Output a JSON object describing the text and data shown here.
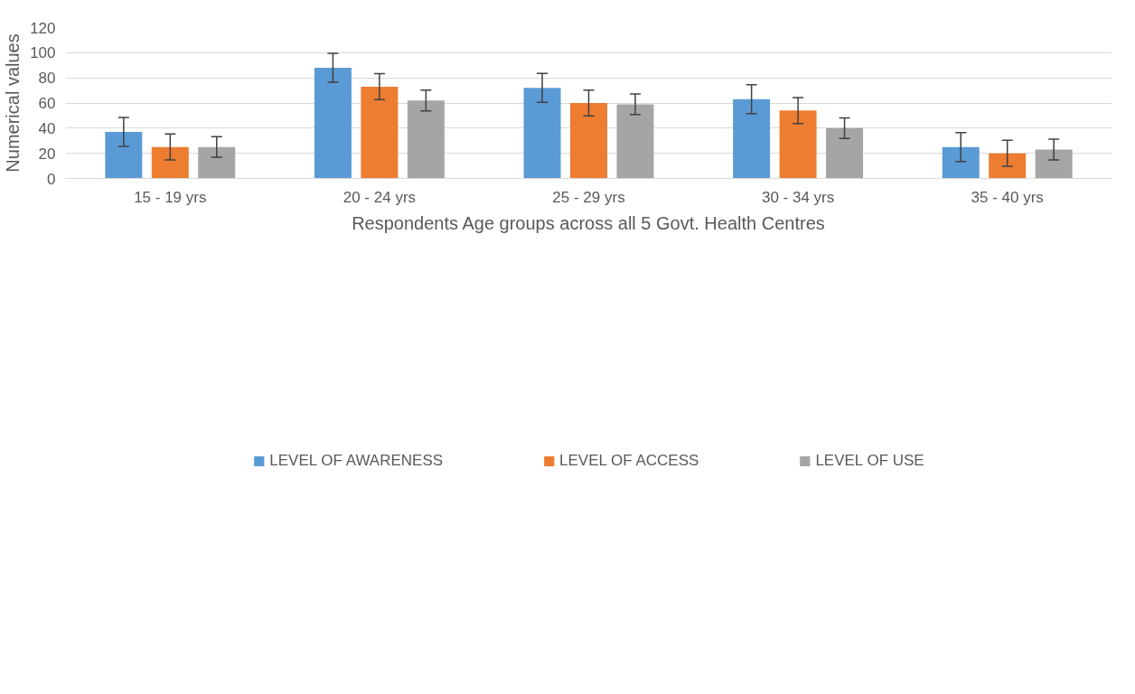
{
  "chart_data": {
    "type": "bar",
    "xlabel": "Respondents Age groups across all 5 Govt. Health Centres",
    "ylabel": "Numerical values",
    "categories": [
      "15 - 19 yrs",
      "20 - 24 yrs",
      "25 - 29 yrs",
      "30 - 34 yrs",
      "35 - 40 yrs"
    ],
    "series": [
      {
        "name": "LEVEL OF AWARENESS",
        "color": "#5b9bd5",
        "values": [
          37,
          88,
          72,
          63,
          25
        ],
        "errors": [
          11.5,
          11.5,
          11.5,
          11.5,
          11.5
        ]
      },
      {
        "name": "LEVEL OF ACCESS",
        "color": "#ed7d31",
        "values": [
          25,
          73,
          60,
          54,
          20
        ],
        "errors": [
          10.3,
          10.3,
          10.3,
          10.3,
          10.3
        ]
      },
      {
        "name": "LEVEL OF USE",
        "color": "#a5a5a5",
        "values": [
          25,
          62,
          59,
          40,
          23
        ],
        "errors": [
          8.2,
          8.2,
          8.2,
          8.2,
          8.2
        ]
      }
    ],
    "ylim": [
      0,
      120
    ],
    "yticks": [
      0,
      20,
      40,
      60,
      80,
      100,
      120
    ],
    "grid": "y",
    "legend": "bottom"
  }
}
